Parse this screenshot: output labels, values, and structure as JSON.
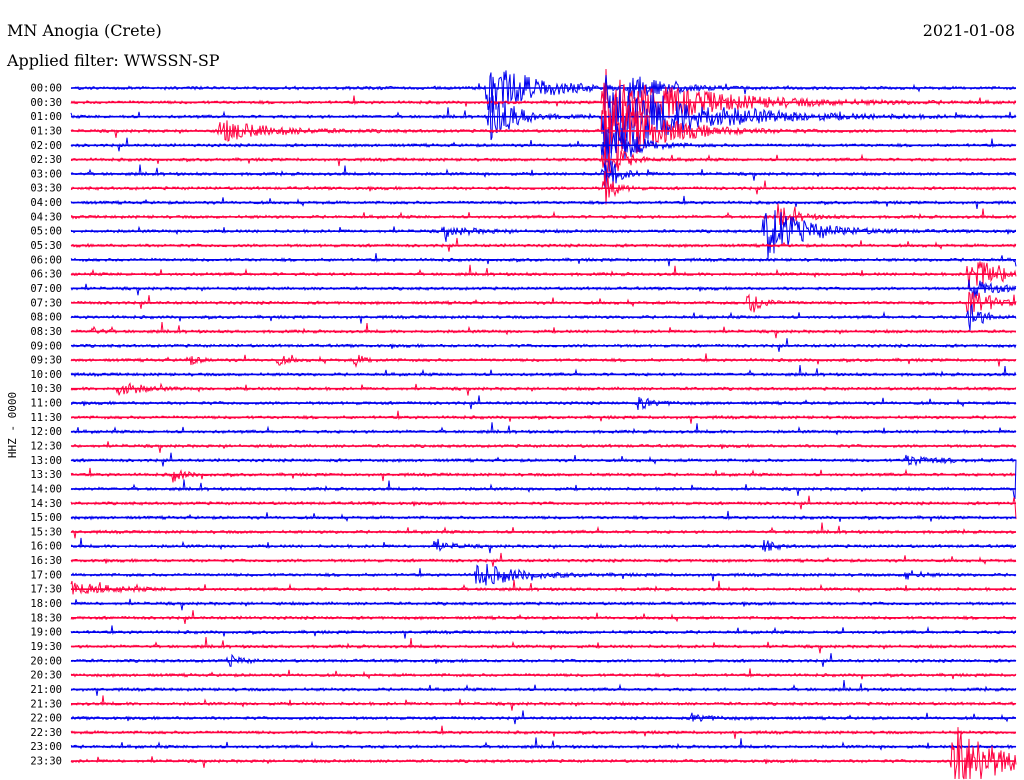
{
  "header": {
    "station": "MN Anogia (Crete)",
    "filter": "Applied filter: WWSSN-SP",
    "date": "2021-01-08"
  },
  "colors": {
    "odd_row": "#0000ee",
    "even_row": "#ff0040",
    "background": "#ffffff"
  },
  "chart_data": {
    "type": "line",
    "ylabel": "HHZ - 0000",
    "y_tick_labels": [
      "00:00",
      "00:30",
      "01:00",
      "01:30",
      "02:00",
      "02:30",
      "03:00",
      "03:30",
      "04:00",
      "04:30",
      "05:00",
      "05:30",
      "06:00",
      "06:30",
      "07:00",
      "07:30",
      "08:00",
      "08:30",
      "09:00",
      "09:30",
      "10:00",
      "10:30",
      "11:00",
      "11:30",
      "12:00",
      "12:30",
      "13:00",
      "13:30",
      "14:00",
      "14:30",
      "15:00",
      "15:30",
      "16:00",
      "16:30",
      "17:00",
      "17:30",
      "18:00",
      "18:30",
      "19:00",
      "19:30",
      "20:00",
      "20:30",
      "21:00",
      "21:30",
      "22:00",
      "22:30",
      "23:00",
      "23:30"
    ],
    "x_range_minutes": [
      0,
      30
    ],
    "grid": false,
    "legend": "none",
    "events": [
      {
        "row": 0,
        "minute": 13.2,
        "amplitude": 28,
        "duration_min": 3.0
      },
      {
        "row": 0,
        "minute": 17.7,
        "amplitude": 14,
        "duration_min": 2.2
      },
      {
        "row": 1,
        "minute": 16.9,
        "amplitude": 36,
        "duration_min": 5.5
      },
      {
        "row": 2,
        "minute": 13.3,
        "amplitude": 30,
        "duration_min": 1.5
      },
      {
        "row": 2,
        "minute": 16.9,
        "amplitude": 42,
        "duration_min": 5.5
      },
      {
        "row": 3,
        "minute": 4.7,
        "amplitude": 11,
        "duration_min": 3.2
      },
      {
        "row": 3,
        "minute": 16.9,
        "amplitude": 50,
        "duration_min": 3.0
      },
      {
        "row": 4,
        "minute": 16.9,
        "amplitude": 40,
        "duration_min": 1.5
      },
      {
        "row": 5,
        "minute": 16.9,
        "amplitude": 30,
        "duration_min": 1.0
      },
      {
        "row": 6,
        "minute": 16.9,
        "amplitude": 26,
        "duration_min": 0.8
      },
      {
        "row": 7,
        "minute": 16.9,
        "amplitude": 24,
        "duration_min": 0.6
      },
      {
        "row": 9,
        "minute": 22.5,
        "amplitude": 10,
        "duration_min": 1.2
      },
      {
        "row": 10,
        "minute": 22.0,
        "amplitude": 30,
        "duration_min": 2.5
      },
      {
        "row": 10,
        "minute": 11.8,
        "amplitude": 5,
        "duration_min": 2.0
      },
      {
        "row": 12,
        "minute": 30.0,
        "amplitude": 14,
        "duration_min": 1.0
      },
      {
        "row": 13,
        "minute": 28.5,
        "amplitude": 18,
        "duration_min": 2.5
      },
      {
        "row": 14,
        "minute": 28.5,
        "amplitude": 12,
        "duration_min": 1.5
      },
      {
        "row": 15,
        "minute": 21.5,
        "amplitude": 14,
        "duration_min": 0.8
      },
      {
        "row": 15,
        "minute": 28.5,
        "amplitude": 20,
        "duration_min": 1.2
      },
      {
        "row": 16,
        "minute": 28.5,
        "amplitude": 16,
        "duration_min": 0.8
      },
      {
        "row": 17,
        "minute": 0.7,
        "amplitude": 5,
        "duration_min": 0.5
      },
      {
        "row": 19,
        "minute": 3.7,
        "amplitude": 6,
        "duration_min": 0.6
      },
      {
        "row": 19,
        "minute": 6.6,
        "amplitude": 5,
        "duration_min": 0.6
      },
      {
        "row": 19,
        "minute": 9.0,
        "amplitude": 7,
        "duration_min": 0.6
      },
      {
        "row": 21,
        "minute": 1.5,
        "amplitude": 8,
        "duration_min": 1.4
      },
      {
        "row": 22,
        "minute": 18.0,
        "amplitude": 6,
        "duration_min": 1.0
      },
      {
        "row": 26,
        "minute": 26.5,
        "amplitude": 5,
        "duration_min": 2.0
      },
      {
        "row": 27,
        "minute": 3.2,
        "amplitude": 7,
        "duration_min": 0.8
      },
      {
        "row": 28,
        "minute": 30.0,
        "amplitude": 30,
        "duration_min": 2.5
      },
      {
        "row": 29,
        "minute": 30.0,
        "amplitude": 22,
        "duration_min": 1.2
      },
      {
        "row": 32,
        "minute": 11.5,
        "amplitude": 6,
        "duration_min": 1.0
      },
      {
        "row": 32,
        "minute": 22.0,
        "amplitude": 8,
        "duration_min": 0.6
      },
      {
        "row": 34,
        "minute": 12.8,
        "amplitude": 14,
        "duration_min": 2.5
      },
      {
        "row": 34,
        "minute": 26.5,
        "amplitude": 6,
        "duration_min": 0.8
      },
      {
        "row": 35,
        "minute": 0.0,
        "amplitude": 8,
        "duration_min": 2.2
      },
      {
        "row": 40,
        "minute": 5.0,
        "amplitude": 6,
        "duration_min": 0.8
      },
      {
        "row": 44,
        "minute": 19.7,
        "amplitude": 4,
        "duration_min": 1.2
      },
      {
        "row": 47,
        "minute": 28.0,
        "amplitude": 45,
        "duration_min": 2.5
      }
    ]
  }
}
